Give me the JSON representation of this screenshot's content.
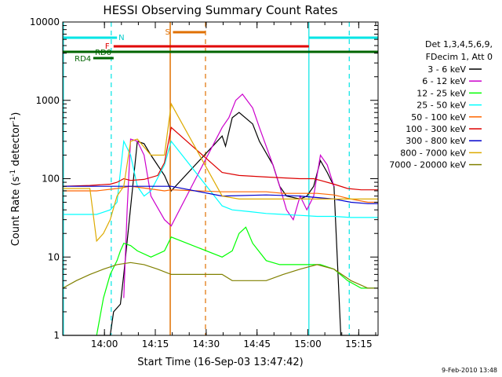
{
  "chart_data": {
    "type": "line",
    "title": "HESSI Observing Summary Count Rates",
    "xlabel": "Start Time (16-Sep-03 13:47:42)",
    "ylabel_main": "Count Rate (s",
    "ylabel_exp1": "-1",
    "ylabel_mid": " detector",
    "ylabel_exp2": "-1",
    "ylabel_end": ")",
    "x_ticks": [
      "14:00",
      "14:15",
      "14:30",
      "14:45",
      "15:00",
      "15:15"
    ],
    "y_ticks": [
      "1",
      "10",
      "100",
      "1000",
      "10000"
    ],
    "xlim_minutes_after_start": [
      0,
      93
    ],
    "ylim": [
      1,
      10000
    ],
    "yscale": "log",
    "legend": {
      "header": [
        "Det 1,3,4,5,6,9,",
        "FDecim 1, Att 0"
      ],
      "placement": "right"
    },
    "series": [
      {
        "name": "3 - 6 keV",
        "color": "#000000",
        "x": [
          0,
          14,
          15,
          17,
          18,
          22,
          24,
          26,
          30,
          32,
          47,
          48,
          50,
          52,
          56,
          58,
          62,
          64,
          66,
          70,
          72,
          74,
          76,
          78,
          80,
          82,
          84,
          86,
          88,
          90,
          93
        ],
        "y": [
          1,
          1,
          2,
          2.5,
          6,
          300,
          280,
          200,
          110,
          70,
          350,
          260,
          600,
          700,
          500,
          300,
          150,
          80,
          60,
          55,
          60,
          80,
          170,
          120,
          80,
          1,
          1,
          1,
          1,
          1,
          1
        ]
      },
      {
        "name": "6 - 12 keV",
        "color": "#cc00cc",
        "x": [
          18,
          19,
          20,
          22,
          24,
          26,
          30,
          32,
          47,
          49,
          51,
          53,
          56,
          58,
          62,
          64,
          66,
          68,
          70,
          72,
          74,
          76,
          78,
          80
        ],
        "y": [
          3,
          40,
          320,
          300,
          200,
          60,
          30,
          25,
          450,
          600,
          1000,
          1200,
          800,
          450,
          150,
          80,
          40,
          30,
          60,
          40,
          60,
          200,
          150,
          80
        ]
      },
      {
        "name": "12 - 25 keV",
        "color": "#00ff00",
        "x": [
          10,
          12,
          14,
          16,
          17,
          18,
          20,
          22,
          26,
          30,
          32,
          47,
          50,
          52,
          54,
          56,
          60,
          64,
          70,
          76,
          80,
          84,
          88,
          92
        ],
        "y": [
          1,
          3,
          6,
          9,
          12,
          15,
          14,
          12,
          10,
          12,
          18,
          10,
          12,
          20,
          24,
          15,
          9,
          8,
          8,
          8,
          7,
          5,
          4,
          4
        ]
      },
      {
        "name": "25 - 50 keV",
        "color": "#00ffff",
        "x": [
          0,
          5,
          10,
          14,
          16,
          18,
          20,
          22,
          24,
          26,
          30,
          32,
          47,
          50,
          55,
          60,
          65,
          70,
          75,
          80,
          85,
          90,
          93
        ],
        "y": [
          35,
          35,
          35,
          40,
          50,
          300,
          200,
          80,
          60,
          70,
          150,
          300,
          45,
          40,
          38,
          36,
          35,
          34,
          33,
          33,
          32,
          32,
          32
        ]
      },
      {
        "name": "50 - 100 keV",
        "color": "#ff6600",
        "x": [
          0,
          10,
          16,
          20,
          25,
          30,
          32,
          47,
          55,
          60,
          65,
          70,
          75,
          80,
          85,
          90,
          93
        ],
        "y": [
          70,
          70,
          75,
          80,
          75,
          70,
          72,
          68,
          68,
          68,
          65,
          65,
          65,
          62,
          55,
          50,
          50
        ]
      },
      {
        "name": "100 - 300 keV",
        "color": "#dd0000",
        "x": [
          0,
          8,
          14,
          16,
          18,
          20,
          24,
          28,
          30,
          32,
          47,
          52,
          60,
          70,
          74,
          76,
          80,
          84,
          88,
          93
        ],
        "y": [
          80,
          82,
          85,
          90,
          100,
          95,
          98,
          110,
          160,
          450,
          120,
          110,
          105,
          100,
          100,
          95,
          85,
          75,
          72,
          72
        ]
      },
      {
        "name": "300 - 800 keV",
        "color": "#0000cc",
        "x": [
          0,
          10,
          20,
          30,
          32,
          47,
          60,
          70,
          80,
          85,
          90,
          93
        ],
        "y": [
          80,
          80,
          80,
          80,
          80,
          60,
          62,
          60,
          55,
          50,
          48,
          48
        ]
      },
      {
        "name": "800 - 7000 keV",
        "color": "#ddaa00",
        "x": [
          0,
          8,
          10,
          12,
          14,
          16,
          18,
          20,
          22,
          26,
          30,
          32,
          47,
          52,
          60,
          70,
          80,
          90,
          93
        ],
        "y": [
          75,
          75,
          16,
          20,
          30,
          60,
          80,
          300,
          320,
          200,
          200,
          900,
          60,
          55,
          55,
          55,
          55,
          55,
          55
        ]
      },
      {
        "name": "7000 - 20000 keV",
        "color": "#808000",
        "x": [
          0,
          4,
          8,
          12,
          16,
          20,
          24,
          28,
          32,
          47,
          50,
          55,
          60,
          65,
          70,
          75,
          80,
          85,
          90,
          93
        ],
        "y": [
          4,
          5,
          6,
          7,
          8,
          8.5,
          8,
          7,
          6,
          6,
          5,
          5,
          5,
          6,
          7,
          8,
          7,
          5,
          4,
          4
        ]
      }
    ],
    "annotations": {
      "flag_labels": [
        "N",
        "F",
        "RD0",
        "RD4",
        "S"
      ]
    },
    "footer_date": "9-Feb-2010 13:48"
  }
}
